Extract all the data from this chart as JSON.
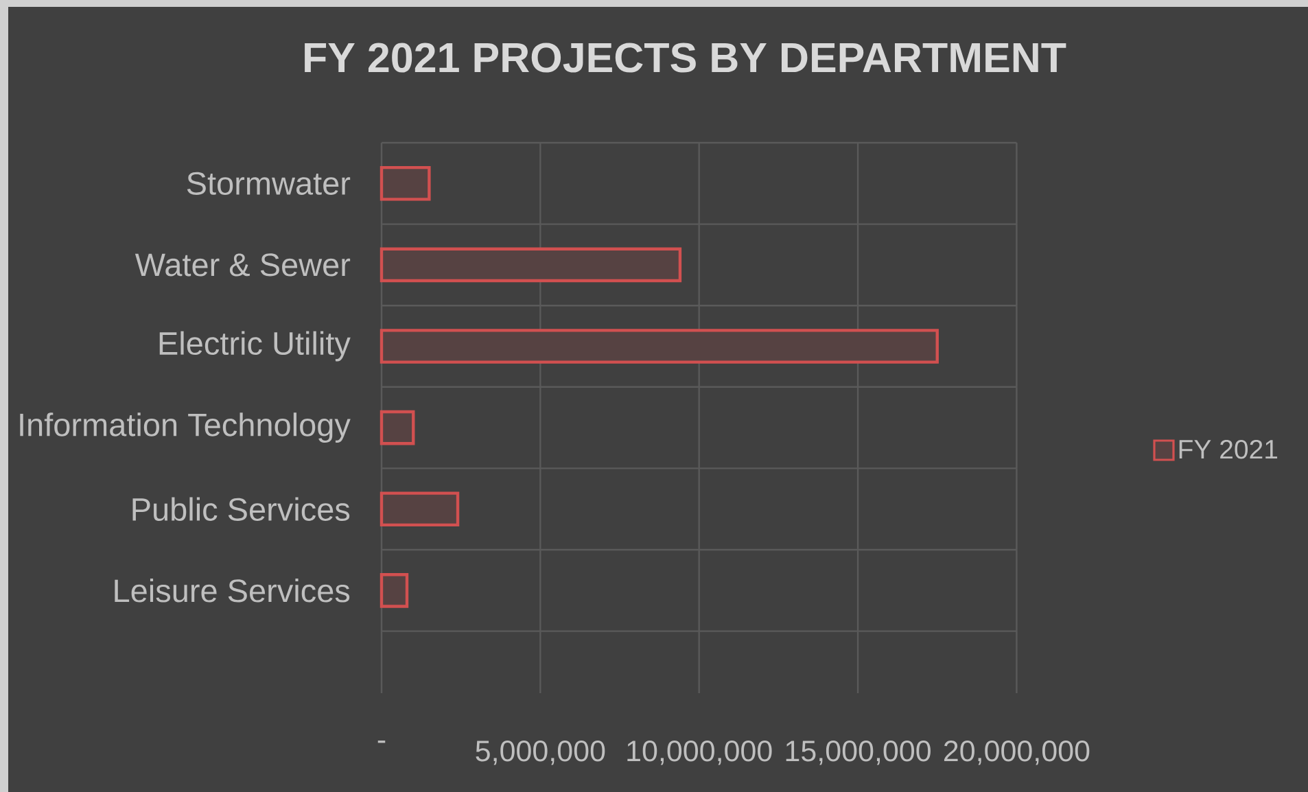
{
  "chart_data": {
    "type": "bar",
    "orientation": "horizontal",
    "title": "FY 2021 PROJECTS BY DEPARTMENT",
    "categories": [
      "Stormwater",
      "Water & Sewer",
      "Electric Utility",
      "Information Technology",
      "Public Services",
      "Leisure Services"
    ],
    "series": [
      {
        "name": "FY 2021",
        "color": "#d25050",
        "values": [
          1500000,
          9400000,
          17500000,
          1000000,
          2400000,
          800000
        ]
      }
    ],
    "xlim": [
      0,
      20000000
    ],
    "xticks": [
      {
        "value": 0,
        "label": "-"
      },
      {
        "value": 5000000,
        "label": "5,000,000"
      },
      {
        "value": 10000000,
        "label": "10,000,000"
      },
      {
        "value": 15000000,
        "label": "15,000,000"
      },
      {
        "value": 20000000,
        "label": "20,000,000"
      }
    ],
    "grid": true,
    "legend": "right"
  }
}
